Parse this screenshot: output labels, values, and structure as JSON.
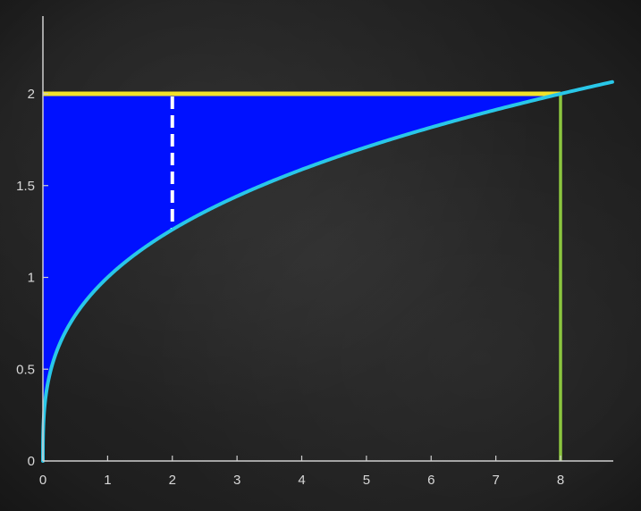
{
  "chart_data": {
    "type": "area",
    "title": "",
    "xlabel": "",
    "ylabel": "",
    "xlim": [
      0,
      8.8
    ],
    "ylim": [
      0,
      2.35
    ],
    "grid": false,
    "x_ticks": [
      "0",
      "1",
      "2",
      "3",
      "4",
      "5",
      "6",
      "7",
      "8"
    ],
    "y_ticks": [
      "0",
      "0.5",
      "1",
      "1.5",
      "2"
    ],
    "curve": {
      "function": "y = x^(1/3)",
      "x": [
        0,
        0.001,
        0.008,
        0.027,
        0.064,
        0.125,
        0.216,
        0.343,
        0.512,
        0.729,
        1,
        1.331,
        1.728,
        2.197,
        2.744,
        3.375,
        4.096,
        4.913,
        5.832,
        6.859,
        8,
        8.8
      ],
      "y": [
        0,
        0.1,
        0.2,
        0.3,
        0.4,
        0.5,
        0.6,
        0.7,
        0.8,
        0.9,
        1,
        1.1,
        1.2,
        1.3,
        1.4,
        1.5,
        1.6,
        1.7,
        1.8,
        1.9,
        2,
        2.064
      ],
      "color": "#29c7e8"
    },
    "shaded_region": {
      "description": "between y = 2 and the curve for 0 <= x <= 8",
      "upper_y": 2,
      "x_range": [
        0,
        8
      ],
      "color": "#0011ff"
    },
    "horizontal_line": {
      "y": 2,
      "x_range": [
        0,
        8
      ],
      "color": "#f2e229"
    },
    "vertical_line": {
      "x": 8,
      "y_range": [
        0,
        2
      ],
      "color": "#8cc63f"
    },
    "dashed_segment": {
      "x": 2,
      "y_range": [
        1.26,
        2
      ],
      "color": "#ffffff"
    },
    "axis_color": "#cfcfcf"
  }
}
